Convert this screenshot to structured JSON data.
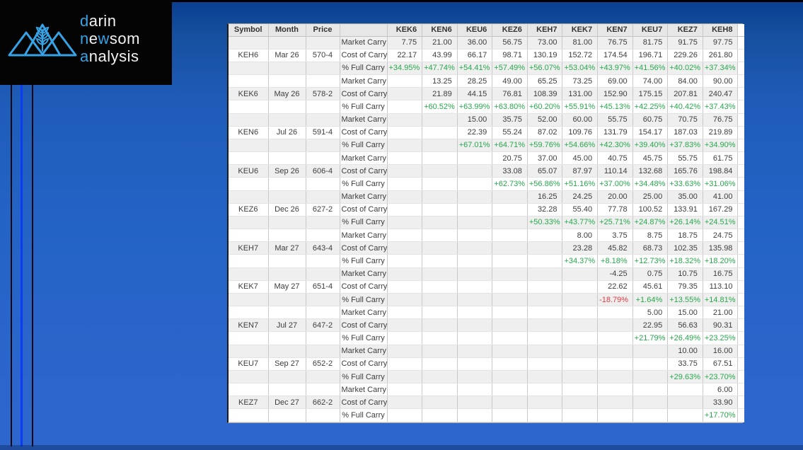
{
  "logo": {
    "words": [
      {
        "segments": [
          {
            "text": "d",
            "hl": true
          },
          {
            "text": "arin",
            "hl": false
          }
        ]
      },
      {
        "segments": [
          {
            "text": "n",
            "hl": true
          },
          {
            "text": "e",
            "hl": false
          },
          {
            "text": "w",
            "hl": true
          },
          {
            "text": "som",
            "hl": false
          }
        ]
      },
      {
        "segments": [
          {
            "text": "a",
            "hl": true
          },
          {
            "text": "nalysis",
            "hl": false
          }
        ]
      }
    ]
  },
  "colors": {
    "positive": "#27a94c",
    "negative": "#e23b45",
    "logo_blue": "#35a3e5",
    "logo_white": "#f2f2f2"
  },
  "table": {
    "column_headers": [
      "Symbol",
      "Month",
      "Price",
      "",
      "KEK6",
      "KEN6",
      "KEU6",
      "KEZ6",
      "KEH7",
      "KEK7",
      "KEN7",
      "KEU7",
      "KEZ7",
      "KEH8"
    ],
    "row_labels": {
      "market": "Market Carry",
      "cost": "Cost of Carry",
      "pct": "% Full Carry"
    },
    "groups": [
      {
        "symbol": "KEH6",
        "month": "Mar 26",
        "price": "570-4",
        "market": [
          "7.75",
          "21.00",
          "36.00",
          "56.75",
          "73.00",
          "81.00",
          "76.75",
          "81.75",
          "91.75",
          "97.75"
        ],
        "cost": [
          "22.17",
          "43.99",
          "66.17",
          "98.71",
          "130.19",
          "152.72",
          "174.54",
          "196.71",
          "229.26",
          "261.80"
        ],
        "pct": [
          "+34.95%",
          "+47.74%",
          "+54.41%",
          "+57.49%",
          "+56.07%",
          "+53.04%",
          "+43.97%",
          "+41.56%",
          "+40.02%",
          "+37.34%"
        ]
      },
      {
        "symbol": "KEK6",
        "month": "May 26",
        "price": "578-2",
        "market": [
          "",
          "13.25",
          "28.25",
          "49.00",
          "65.25",
          "73.25",
          "69.00",
          "74.00",
          "84.00",
          "90.00"
        ],
        "cost": [
          "",
          "21.89",
          "44.15",
          "76.81",
          "108.39",
          "131.00",
          "152.90",
          "175.15",
          "207.81",
          "240.47"
        ],
        "pct": [
          "",
          "+60.52%",
          "+63.99%",
          "+63.80%",
          "+60.20%",
          "+55.91%",
          "+45.13%",
          "+42.25%",
          "+40.42%",
          "+37.43%"
        ]
      },
      {
        "symbol": "KEN6",
        "month": "Jul 26",
        "price": "591-4",
        "market": [
          "",
          "",
          "15.00",
          "35.75",
          "52.00",
          "60.00",
          "55.75",
          "60.75",
          "70.75",
          "76.75"
        ],
        "cost": [
          "",
          "",
          "22.39",
          "55.24",
          "87.02",
          "109.76",
          "131.79",
          "154.17",
          "187.03",
          "219.89"
        ],
        "pct": [
          "",
          "",
          "+67.01%",
          "+64.71%",
          "+59.76%",
          "+54.66%",
          "+42.30%",
          "+39.40%",
          "+37.83%",
          "+34.90%"
        ]
      },
      {
        "symbol": "KEU6",
        "month": "Sep 26",
        "price": "606-4",
        "market": [
          "",
          "",
          "",
          "20.75",
          "37.00",
          "45.00",
          "40.75",
          "45.75",
          "55.75",
          "61.75"
        ],
        "cost": [
          "",
          "",
          "",
          "33.08",
          "65.07",
          "87.97",
          "110.14",
          "132.68",
          "165.76",
          "198.84"
        ],
        "pct": [
          "",
          "",
          "",
          "+62.73%",
          "+56.86%",
          "+51.16%",
          "+37.00%",
          "+34.48%",
          "+33.63%",
          "+31.06%"
        ]
      },
      {
        "symbol": "KEZ6",
        "month": "Dec 26",
        "price": "627-2",
        "market": [
          "",
          "",
          "",
          "",
          "16.25",
          "24.25",
          "20.00",
          "25.00",
          "35.00",
          "41.00"
        ],
        "cost": [
          "",
          "",
          "",
          "",
          "32.28",
          "55.40",
          "77.78",
          "100.52",
          "133.91",
          "167.29"
        ],
        "pct": [
          "",
          "",
          "",
          "",
          "+50.33%",
          "+43.77%",
          "+25.71%",
          "+24.87%",
          "+26.14%",
          "+24.51%"
        ]
      },
      {
        "symbol": "KEH7",
        "month": "Mar 27",
        "price": "643-4",
        "market": [
          "",
          "",
          "",
          "",
          "",
          "8.00",
          "3.75",
          "8.75",
          "18.75",
          "24.75"
        ],
        "cost": [
          "",
          "",
          "",
          "",
          "",
          "23.28",
          "45.82",
          "68.73",
          "102.35",
          "135.98"
        ],
        "pct": [
          "",
          "",
          "",
          "",
          "",
          "+34.37%",
          "+8.18%",
          "+12.73%",
          "+18.32%",
          "+18.20%"
        ]
      },
      {
        "symbol": "KEK7",
        "month": "May 27",
        "price": "651-4",
        "market": [
          "",
          "",
          "",
          "",
          "",
          "",
          "-4.25",
          "0.75",
          "10.75",
          "16.75"
        ],
        "cost": [
          "",
          "",
          "",
          "",
          "",
          "",
          "22.62",
          "45.61",
          "79.35",
          "113.10"
        ],
        "pct": [
          "",
          "",
          "",
          "",
          "",
          "",
          "-18.79%",
          "+1.64%",
          "+13.55%",
          "+14.81%"
        ]
      },
      {
        "symbol": "KEN7",
        "month": "Jul 27",
        "price": "647-2",
        "market": [
          "",
          "",
          "",
          "",
          "",
          "",
          "",
          "5.00",
          "15.00",
          "21.00"
        ],
        "cost": [
          "",
          "",
          "",
          "",
          "",
          "",
          "",
          "22.95",
          "56.63",
          "90.31"
        ],
        "pct": [
          "",
          "",
          "",
          "",
          "",
          "",
          "",
          "+21.79%",
          "+26.49%",
          "+23.25%"
        ]
      },
      {
        "symbol": "KEU7",
        "month": "Sep 27",
        "price": "652-2",
        "market": [
          "",
          "",
          "",
          "",
          "",
          "",
          "",
          "",
          "10.00",
          "16.00"
        ],
        "cost": [
          "",
          "",
          "",
          "",
          "",
          "",
          "",
          "",
          "33.75",
          "67.51"
        ],
        "pct": [
          "",
          "",
          "",
          "",
          "",
          "",
          "",
          "",
          "+29.63%",
          "+23.70%"
        ]
      },
      {
        "symbol": "KEZ7",
        "month": "Dec 27",
        "price": "662-2",
        "market": [
          "",
          "",
          "",
          "",
          "",
          "",
          "",
          "",
          "",
          "6.00"
        ],
        "cost": [
          "",
          "",
          "",
          "",
          "",
          "",
          "",
          "",
          "",
          "33.90"
        ],
        "pct": [
          "",
          "",
          "",
          "",
          "",
          "",
          "",
          "",
          "",
          "+17.70%"
        ]
      }
    ]
  }
}
